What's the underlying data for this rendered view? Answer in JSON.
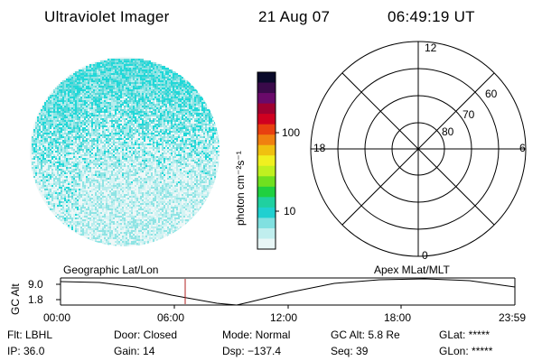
{
  "header": {
    "title": "Ultraviolet Imager",
    "date": "21 Aug 07",
    "time": "06:49:19 UT"
  },
  "colorbar": {
    "unit_label": "photon cm⁻²s⁻¹",
    "ticks": [
      "100",
      "10"
    ],
    "colors": [
      "#0a0a2a",
      "#3a0a4a",
      "#6a0a6a",
      "#a00030",
      "#d00020",
      "#e84010",
      "#f08010",
      "#f0c010",
      "#f0f020",
      "#c0f020",
      "#70e020",
      "#20d040",
      "#20d0a0",
      "#20d0d0",
      "#80e0e0",
      "#c0eeee",
      "#e8f6f6"
    ]
  },
  "polar_grid": {
    "mlt_labels": [
      "12",
      "18",
      "6",
      "0"
    ],
    "lat_labels": [
      "60",
      "70",
      "80"
    ]
  },
  "altitude_panel": {
    "left_label": "Geographic Lat/Lon",
    "right_label": "Apex MLat/MLT",
    "y_axis_label": "GC Alt",
    "y_ticks": [
      "9.0",
      "1.8"
    ],
    "x_ticks": [
      "00:00",
      "06:00",
      "12:00",
      "18:00",
      "23:59"
    ],
    "current_marker_color": "#b02020"
  },
  "status": {
    "flt": "Flt: LBHL",
    "ip": "IP: 36.0",
    "door": "Door: Closed",
    "gain": "Gain: 14",
    "mode": "Mode: Normal",
    "dsp": "Dsp: −137.4",
    "gc_alt": "GC Alt: 5.8 Re",
    "seq": "Seq: 39",
    "glat": "GLat: *****",
    "glon": "GLon: *****"
  }
}
